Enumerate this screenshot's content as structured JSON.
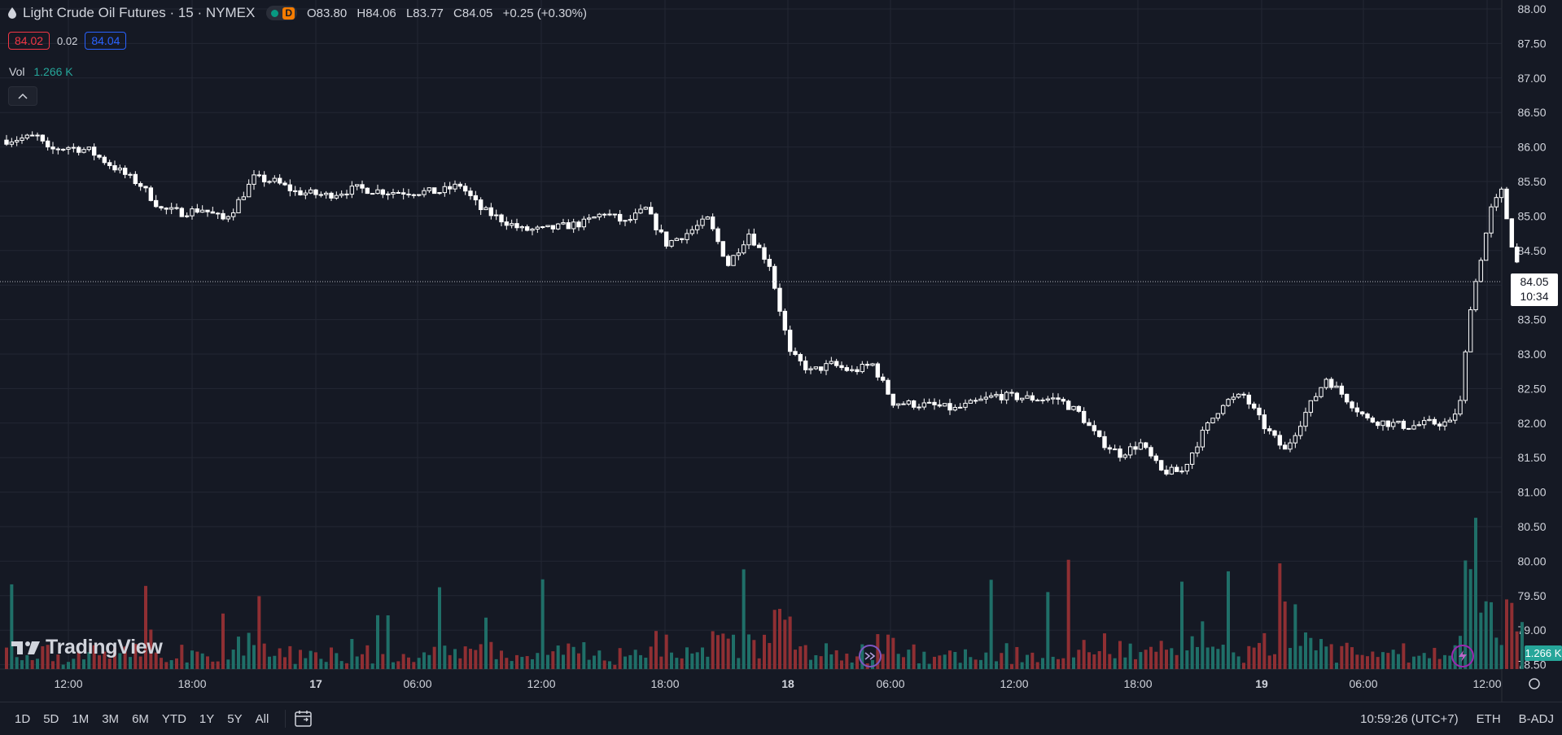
{
  "legend": {
    "symbol_title": "Light Crude Oil Futures · 15 · NYMEX",
    "badge": "D",
    "ohlc": {
      "o_label": "O",
      "o": "83.80",
      "h_label": "H",
      "h": "84.06",
      "l_label": "L",
      "l": "83.77",
      "c_label": "C",
      "c": "84.05",
      "change": "+0.25 (+0.30%)"
    },
    "bid": "84.02",
    "spread": "0.02",
    "ask": "84.04",
    "vol_label": "Vol",
    "vol_value": "1.266 K"
  },
  "price_axis": {
    "ticks": [
      "88.00",
      "87.50",
      "87.00",
      "86.50",
      "86.00",
      "85.50",
      "85.00",
      "84.50",
      "84.00",
      "83.50",
      "83.00",
      "82.50",
      "82.00",
      "81.50",
      "81.00",
      "80.50",
      "80.00",
      "79.50",
      "79.00",
      "78.50"
    ],
    "last_price": "84.05",
    "countdown": "10:34",
    "volume_tag": "1.266 K"
  },
  "time_axis": {
    "ticks": [
      "12:00",
      "18:00",
      "17",
      "06:00",
      "12:00",
      "18:00",
      "18",
      "06:00",
      "12:00",
      "18:00",
      "19",
      "06:00",
      "12:00"
    ]
  },
  "bottom_bar": {
    "ranges": [
      "1D",
      "5D",
      "1M",
      "3M",
      "6M",
      "YTD",
      "1Y",
      "5Y",
      "All"
    ],
    "clock": "10:59:26 (UTC+7)",
    "session": "ETH",
    "adjust": "B-ADJ"
  },
  "logo_text": "TradingView",
  "colors": {
    "background": "#151924",
    "up": "#26a69a",
    "down": "#ef5350",
    "vol_up": "#1f6f68",
    "vol_down": "#8f2f33",
    "grid": "#232733",
    "text": "#d1d4dc"
  },
  "chart_data": {
    "type": "candlestick",
    "title": "Light Crude Oil Futures · 15 · NYMEX",
    "y_range": [
      78.5,
      88.0
    ],
    "price_path": [
      {
        "t": "16 09:00",
        "p": 86.1
      },
      {
        "t": "16 10:30",
        "p": 86.15
      },
      {
        "t": "16 11:00",
        "p": 85.95
      },
      {
        "t": "16 12:00",
        "p": 86.0
      },
      {
        "t": "16 13:00",
        "p": 85.95
      },
      {
        "t": "16 14:00",
        "p": 85.75
      },
      {
        "t": "16 15:30",
        "p": 85.45
      },
      {
        "t": "16 16:30",
        "p": 85.1
      },
      {
        "t": "16 17:30",
        "p": 85.05
      },
      {
        "t": "16 18:30",
        "p": 85.1
      },
      {
        "t": "16 19:30",
        "p": 84.95
      },
      {
        "t": "16 20:00",
        "p": 85.1
      },
      {
        "t": "16 21:00",
        "p": 85.55
      },
      {
        "t": "16 22:00",
        "p": 85.5
      },
      {
        "t": "16 23:00",
        "p": 85.35
      },
      {
        "t": "17 00:30",
        "p": 85.3
      },
      {
        "t": "17 02:00",
        "p": 85.4
      },
      {
        "t": "17 03:30",
        "p": 85.35
      },
      {
        "t": "17 05:00",
        "p": 85.35
      },
      {
        "t": "17 06:00",
        "p": 85.35
      },
      {
        "t": "17 07:00",
        "p": 85.45
      },
      {
        "t": "17 08:00",
        "p": 85.1
      },
      {
        "t": "17 09:00",
        "p": 84.95
      },
      {
        "t": "17 10:00",
        "p": 84.8
      },
      {
        "t": "17 11:00",
        "p": 84.8
      },
      {
        "t": "17 12:00",
        "p": 84.85
      },
      {
        "t": "17 13:00",
        "p": 84.9
      },
      {
        "t": "17 14:00",
        "p": 85.05
      },
      {
        "t": "17 15:00",
        "p": 84.9
      },
      {
        "t": "17 16:00",
        "p": 85.1
      },
      {
        "t": "17 17:00",
        "p": 84.6
      },
      {
        "t": "17 18:00",
        "p": 84.75
      },
      {
        "t": "17 19:00",
        "p": 84.95
      },
      {
        "t": "17 20:00",
        "p": 84.3
      },
      {
        "t": "17 21:00",
        "p": 84.75
      },
      {
        "t": "17 22:00",
        "p": 84.3
      },
      {
        "t": "17 23:00",
        "p": 83.0
      },
      {
        "t": "18 00:00",
        "p": 82.75
      },
      {
        "t": "18 01:00",
        "p": 82.85
      },
      {
        "t": "18 02:00",
        "p": 82.75
      },
      {
        "t": "18 03:00",
        "p": 82.85
      },
      {
        "t": "18 04:00",
        "p": 82.3
      },
      {
        "t": "18 06:00",
        "p": 82.25
      },
      {
        "t": "18 07:00",
        "p": 82.2
      },
      {
        "t": "18 08:00",
        "p": 82.3
      },
      {
        "t": "18 09:00",
        "p": 82.4
      },
      {
        "t": "18 11:00",
        "p": 82.35
      },
      {
        "t": "18 12:00",
        "p": 82.35
      },
      {
        "t": "18 13:00",
        "p": 82.15
      },
      {
        "t": "18 14:00",
        "p": 81.75
      },
      {
        "t": "18 15:00",
        "p": 81.55
      },
      {
        "t": "18 16:00",
        "p": 81.7
      },
      {
        "t": "18 17:00",
        "p": 81.3
      },
      {
        "t": "18 18:00",
        "p": 81.3
      },
      {
        "t": "18 19:00",
        "p": 81.85
      },
      {
        "t": "18 20:00",
        "p": 82.3
      },
      {
        "t": "18 21:00",
        "p": 82.4
      },
      {
        "t": "18 22:00",
        "p": 81.95
      },
      {
        "t": "18 23:00",
        "p": 81.6
      },
      {
        "t": "19 00:00",
        "p": 82.15
      },
      {
        "t": "19 01:00",
        "p": 82.65
      },
      {
        "t": "19 02:00",
        "p": 82.35
      },
      {
        "t": "19 03:00",
        "p": 82.05
      },
      {
        "t": "19 04:00",
        "p": 82.0
      },
      {
        "t": "19 05:00",
        "p": 81.95
      },
      {
        "t": "19 06:00",
        "p": 82.0
      },
      {
        "t": "19 07:00",
        "p": 82.0
      },
      {
        "t": "19 07:30",
        "p": 82.3
      },
      {
        "t": "19 08:00",
        "p": 83.7
      },
      {
        "t": "19 08:30",
        "p": 84.4
      },
      {
        "t": "19 09:00",
        "p": 85.1
      },
      {
        "t": "19 09:30",
        "p": 85.35
      },
      {
        "t": "19 10:00",
        "p": 84.6
      },
      {
        "t": "19 10:30",
        "p": 84.05
      }
    ],
    "volume_scale": "relative",
    "last": {
      "open": 83.8,
      "high": 84.06,
      "low": 83.77,
      "close": 84.05,
      "change": 0.25,
      "change_pct": 0.3
    }
  }
}
